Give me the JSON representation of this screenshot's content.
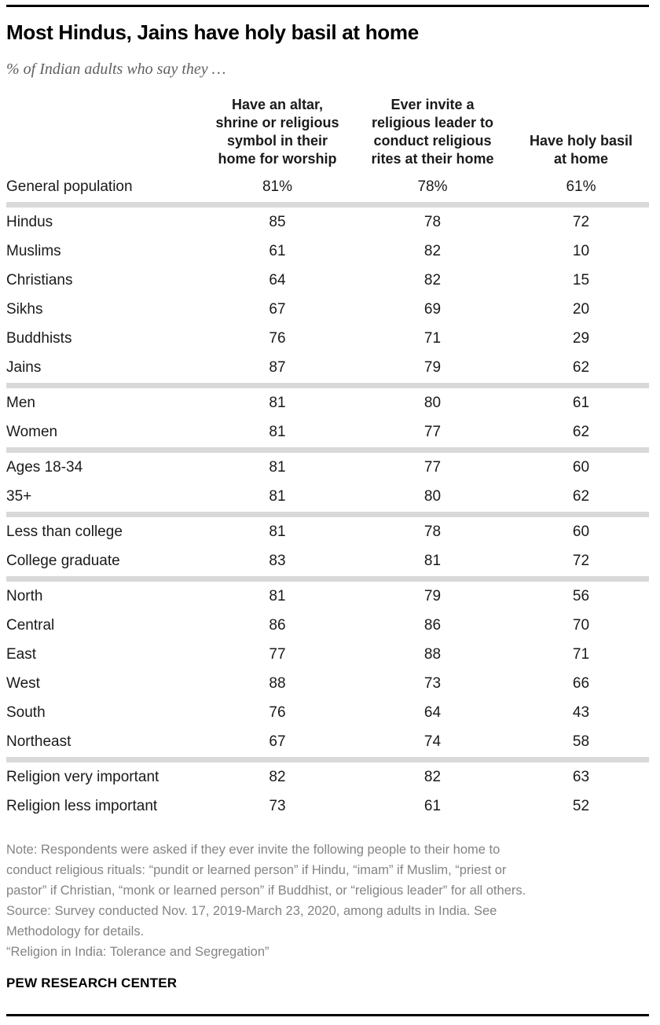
{
  "colors": {
    "rule_black": "#000000",
    "section_divider_gray": "#d9d9d9",
    "note_gray": "#848484",
    "subtitle_gray": "#606060"
  },
  "chart_data": {
    "type": "table",
    "title": "Most Hindus, Jains have holy basil at home",
    "subtitle": "% of Indian adults who say they …",
    "columns": [
      "Have an altar, shrine or religious symbol in their home for worship",
      "Ever invite a religious leader to conduct religious rites at their home",
      "Have holy basil at home"
    ],
    "value_unit": "percent",
    "sections": [
      [
        {
          "label": "General population",
          "values": [
            81,
            78,
            61
          ],
          "suffix": "%"
        }
      ],
      [
        {
          "label": "Hindus",
          "values": [
            85,
            78,
            72
          ]
        },
        {
          "label": "Muslims",
          "values": [
            61,
            82,
            10
          ]
        },
        {
          "label": "Christians",
          "values": [
            64,
            82,
            15
          ]
        },
        {
          "label": "Sikhs",
          "values": [
            67,
            69,
            20
          ]
        },
        {
          "label": "Buddhists",
          "values": [
            76,
            71,
            29
          ]
        },
        {
          "label": "Jains",
          "values": [
            87,
            79,
            62
          ]
        }
      ],
      [
        {
          "label": "Men",
          "values": [
            81,
            80,
            61
          ]
        },
        {
          "label": "Women",
          "values": [
            81,
            77,
            62
          ]
        }
      ],
      [
        {
          "label": "Ages 18-34",
          "values": [
            81,
            77,
            60
          ]
        },
        {
          "label": "35+",
          "values": [
            81,
            80,
            62
          ]
        }
      ],
      [
        {
          "label": "Less than college",
          "values": [
            81,
            78,
            60
          ]
        },
        {
          "label": "College graduate",
          "values": [
            83,
            81,
            72
          ]
        }
      ],
      [
        {
          "label": "North",
          "values": [
            81,
            79,
            56
          ]
        },
        {
          "label": "Central",
          "values": [
            86,
            86,
            70
          ]
        },
        {
          "label": "East",
          "values": [
            77,
            88,
            71
          ]
        },
        {
          "label": "West",
          "values": [
            88,
            73,
            66
          ]
        },
        {
          "label": "South",
          "values": [
            76,
            64,
            43
          ]
        },
        {
          "label": "Northeast",
          "values": [
            67,
            74,
            58
          ]
        }
      ],
      [
        {
          "label": "Religion very important",
          "values": [
            82,
            82,
            63
          ]
        },
        {
          "label": "Religion less important",
          "values": [
            73,
            61,
            52
          ]
        }
      ]
    ]
  },
  "footer": {
    "note_lines": [
      "Note: Respondents were asked if they ever invite the following people to their home to",
      "conduct religious rituals: “pundit or learned person” if Hindu, “imam” if Muslim, “priest or",
      "pastor” if Christian, “monk or learned person” if Buddhist, or “religious leader” for all others."
    ],
    "source_lines": [
      "Source: Survey conducted Nov. 17, 2019-March 23, 2020, among adults in India. See",
      "Methodology for details."
    ],
    "citation": "“Religion in India: Tolerance and Segregation”",
    "brand": "PEW RESEARCH CENTER"
  }
}
